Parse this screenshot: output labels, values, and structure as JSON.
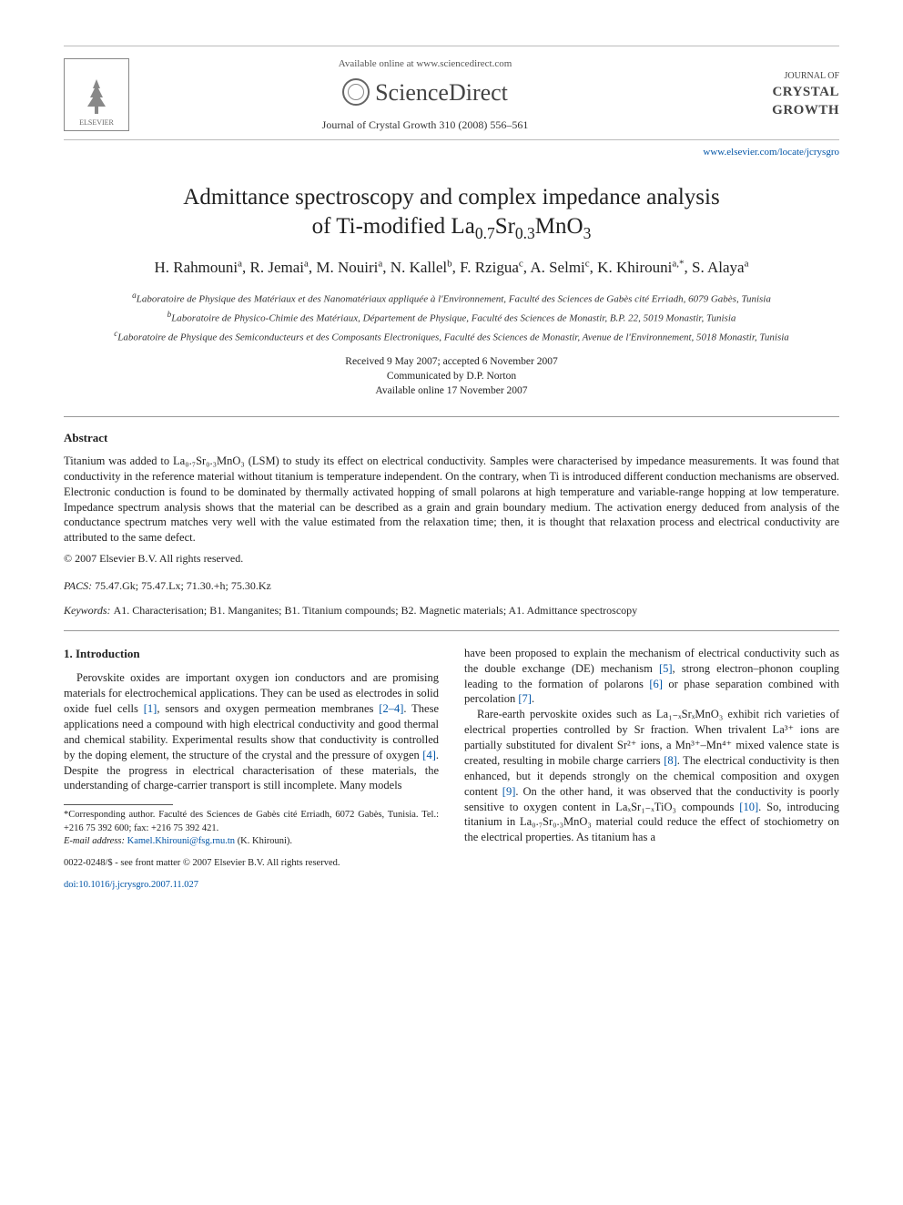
{
  "header": {
    "available_text": "Available online at www.sciencedirect.com",
    "sciencedirect": "ScienceDirect",
    "journal_ref": "Journal of Crystal Growth 310 (2008) 556–561",
    "journal_small": "JOURNAL OF",
    "journal_big1": "CRYSTAL",
    "journal_big2": "GROWTH",
    "elsevier": "ELSEVIER",
    "journal_url": "www.elsevier.com/locate/jcrysgro"
  },
  "title_line1": "Admittance spectroscopy and complex impedance analysis",
  "title_line2": "of Ti-modified La",
  "title_formula_sub1": "0.7",
  "title_formula_mid": "Sr",
  "title_formula_sub2": "0.3",
  "title_formula_end": "MnO",
  "title_formula_sub3": "3",
  "authors_html": "H. Rahmouni<sup>a</sup>, R. Jemai<sup>a</sup>, M. Nouiri<sup>a</sup>, N. Kallel<sup>b</sup>, F. Rzigua<sup>c</sup>, A. Selmi<sup>c</sup>, K. Khirouni<sup>a,*</sup>, S. Alaya<sup>a</sup>",
  "affiliations": {
    "a": "Laboratoire de Physique des Matériaux et des Nanomatériaux appliquée à l'Environnement, Faculté des Sciences de Gabès cité Erriadh, 6079 Gabès, Tunisia",
    "b": "Laboratoire de Physico-Chimie des Matériaux, Département de Physique, Faculté des Sciences de Monastir, B.P. 22, 5019 Monastir, Tunisia",
    "c": "Laboratoire de Physique des Semiconducteurs et des Composants Electroniques, Faculté des Sciences de Monastir, Avenue de l'Environnement, 5018 Monastir, Tunisia"
  },
  "dates": {
    "received": "Received 9 May 2007; accepted 6 November 2007",
    "communicated": "Communicated by D.P. Norton",
    "online": "Available online 17 November 2007"
  },
  "abstract_label": "Abstract",
  "abstract_body": "Titanium was added to La₀.₇Sr₀.₃MnO₃ (LSM) to study its effect on electrical conductivity. Samples were characterised by impedance measurements. It was found that conductivity in the reference material without titanium is temperature independent. On the contrary, when Ti is introduced different conduction mechanisms are observed. Electronic conduction is found to be dominated by thermally activated hopping of small polarons at high temperature and variable-range hopping at low temperature. Impedance spectrum analysis shows that the material can be described as a grain and grain boundary medium. The activation energy deduced from analysis of the conductance spectrum matches very well with the value estimated from the relaxation time; then, it is thought that relaxation process and electrical conductivity are attributed to the same defect.",
  "copyright": "© 2007 Elsevier B.V. All rights reserved.",
  "pacs_label": "PACS:",
  "pacs": "75.47.Gk; 75.47.Lx; 71.30.+h; 75.30.Kz",
  "keywords_label": "Keywords:",
  "keywords": "A1. Characterisation; B1. Manganites; B1. Titanium compounds; B2. Magnetic materials; A1. Admittance spectroscopy",
  "section1_heading": "1. Introduction",
  "col_left_p1": "Perovskite oxides are important oxygen ion conductors and are promising materials for electrochemical applications. They can be used as electrodes in solid oxide fuel cells [1], sensors and oxygen permeation membranes [2–4]. These applications need a compound with high electrical conductivity and good thermal and chemical stability. Experimental results show that conductivity is controlled by the doping element, the structure of the crystal and the pressure of oxygen [4]. Despite the progress in electrical characterisation of these materials, the understanding of charge-carrier transport is still incomplete. Many models",
  "col_right_p1": "have been proposed to explain the mechanism of electrical conductivity such as the double exchange (DE) mechanism [5], strong electron–phonon coupling leading to the formation of polarons [6] or phase separation combined with percolation [7].",
  "col_right_p2": "Rare-earth pervoskite oxides such as La₁₋ₓSrₓMnO₃ exhibit rich varieties of electrical properties controlled by Sr fraction. When trivalent La³⁺ ions are partially substituted for divalent Sr²⁺ ions, a Mn³⁺–Mn⁴⁺ mixed valence state is created, resulting in mobile charge carriers [8]. The electrical conductivity is then enhanced, but it depends strongly on the chemical composition and oxygen content [9]. On the other hand, it was observed that the conductivity is poorly sensitive to oxygen content in LaₓSr₁₋ₓTiO₃ compounds [10]. So, introducing titanium in La₀.₇Sr₀.₃MnO₃ material could reduce the effect of stochiometry on the electrical properties. As titanium has a",
  "footnote": {
    "corr": "*Corresponding author. Faculté des Sciences de Gabès cité Erriadh, 6072 Gabès, Tunisia. Tel.: +216 75 392 600; fax: +216 75 392 421.",
    "email_label": "E-mail address:",
    "email": "Kamel.Khirouni@fsg.rnu.tn",
    "email_person": "(K. Khirouni)."
  },
  "footer": {
    "line1": "0022-0248/$ - see front matter © 2007 Elsevier B.V. All rights reserved.",
    "doi": "doi:10.1016/j.jcrysgro.2007.11.027"
  },
  "colors": {
    "link": "#0054a6",
    "text": "#222222",
    "rule": "#999999"
  }
}
